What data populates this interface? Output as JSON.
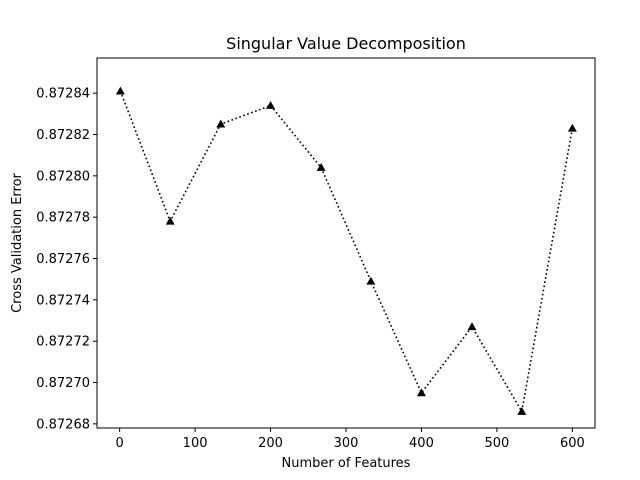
{
  "chart_data": {
    "type": "line",
    "title": "Singular Value Decomposition",
    "xlabel": "Number of Features",
    "ylabel": "Cross Validation Error",
    "xlim": [
      -30,
      630
    ],
    "ylim": [
      0.872678,
      0.872857
    ],
    "x_ticks": [
      0,
      100,
      200,
      300,
      400,
      500,
      600
    ],
    "y_ticks": [
      0.87268,
      0.8727,
      0.87272,
      0.87274,
      0.87276,
      0.87278,
      0.8728,
      0.87282,
      0.87284
    ],
    "y_tick_labels": [
      "0.87268",
      "0.87270",
      "0.87272",
      "0.87274",
      "0.87276",
      "0.87278",
      "0.87280",
      "0.87282",
      "0.87284"
    ],
    "grid": false,
    "series": [
      {
        "line_style": "dotted",
        "marker": "triangle-up",
        "color": "#000000",
        "x": [
          1,
          67,
          134,
          200,
          267,
          333,
          400,
          467,
          533,
          600
        ],
        "y": [
          0.872841,
          0.872778,
          0.872825,
          0.872834,
          0.872804,
          0.872749,
          0.872695,
          0.872727,
          0.872686,
          0.872823
        ]
      }
    ]
  }
}
